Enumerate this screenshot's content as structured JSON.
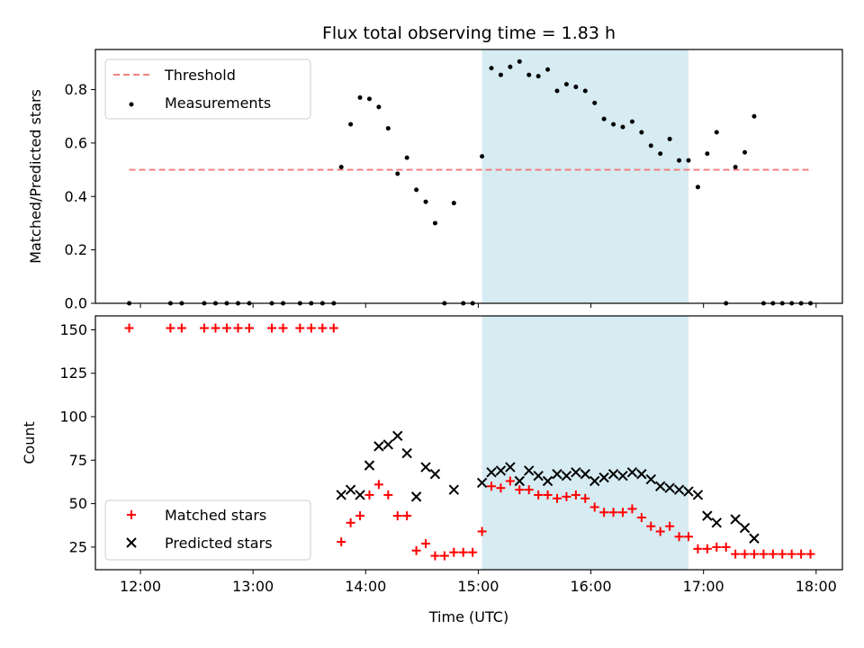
{
  "colors": {
    "threshold": "#f08080",
    "measurement": "#000000",
    "matched": "#ff0000",
    "predicted": "#000000",
    "shade": "#add8e6"
  },
  "chart_data": [
    {
      "type": "scatter",
      "title": "Flux total observing time = 1.83 h",
      "xlabel": "",
      "ylabel": "Matched/Predicted stars",
      "xlim": [
        "11:36",
        "18:14"
      ],
      "ylim": [
        0,
        0.95
      ],
      "x_ticks": [
        "12:00",
        "13:00",
        "14:00",
        "15:00",
        "16:00",
        "17:00",
        "18:00"
      ],
      "y_ticks": [
        "0.0",
        "0.2",
        "0.4",
        "0.6",
        "0.8"
      ],
      "shaded_region": [
        "15:02",
        "16:52"
      ],
      "legend": {
        "placement": "upper-left",
        "entries": [
          {
            "label": "Threshold",
            "style": "dashed-line"
          },
          {
            "label": "Measurements",
            "style": "dot"
          }
        ]
      },
      "series": [
        {
          "name": "Threshold",
          "kind": "line",
          "points": [
            [
              "11:54",
              0.5
            ],
            [
              "17:58",
              0.5
            ]
          ]
        },
        {
          "name": "Measurements",
          "kind": "scatter",
          "points": [
            [
              "11:54",
              0.0
            ],
            [
              "12:16",
              0.0
            ],
            [
              "12:22",
              0.0
            ],
            [
              "12:34",
              0.0
            ],
            [
              "12:40",
              0.0
            ],
            [
              "12:46",
              0.0
            ],
            [
              "12:52",
              0.0
            ],
            [
              "12:58",
              0.0
            ],
            [
              "13:10",
              0.0
            ],
            [
              "13:16",
              0.0
            ],
            [
              "13:25",
              0.0
            ],
            [
              "13:31",
              0.0
            ],
            [
              "13:37",
              0.0
            ],
            [
              "13:43",
              0.0
            ],
            [
              "13:47",
              0.51
            ],
            [
              "13:52",
              0.67
            ],
            [
              "13:57",
              0.77
            ],
            [
              "14:02",
              0.765
            ],
            [
              "14:07",
              0.735
            ],
            [
              "14:12",
              0.655
            ],
            [
              "14:17",
              0.485
            ],
            [
              "14:22",
              0.545
            ],
            [
              "14:27",
              0.425
            ],
            [
              "14:32",
              0.38
            ],
            [
              "14:37",
              0.3
            ],
            [
              "14:42",
              0.0
            ],
            [
              "14:47",
              0.375
            ],
            [
              "14:52",
              0.0
            ],
            [
              "14:57",
              0.0
            ],
            [
              "15:02",
              0.55
            ],
            [
              "15:07",
              0.88
            ],
            [
              "15:12",
              0.855
            ],
            [
              "15:17",
              0.885
            ],
            [
              "15:22",
              0.905
            ],
            [
              "15:27",
              0.855
            ],
            [
              "15:32",
              0.85
            ],
            [
              "15:37",
              0.875
            ],
            [
              "15:42",
              0.795
            ],
            [
              "15:47",
              0.82
            ],
            [
              "15:52",
              0.81
            ],
            [
              "15:57",
              0.795
            ],
            [
              "16:02",
              0.75
            ],
            [
              "16:07",
              0.69
            ],
            [
              "16:12",
              0.67
            ],
            [
              "16:17",
              0.66
            ],
            [
              "16:22",
              0.68
            ],
            [
              "16:27",
              0.64
            ],
            [
              "16:32",
              0.59
            ],
            [
              "16:37",
              0.56
            ],
            [
              "16:42",
              0.615
            ],
            [
              "16:47",
              0.535
            ],
            [
              "16:52",
              0.535
            ],
            [
              "16:57",
              0.435
            ],
            [
              "17:02",
              0.56
            ],
            [
              "17:07",
              0.64
            ],
            [
              "17:12",
              0.0
            ],
            [
              "17:17",
              0.51
            ],
            [
              "17:22",
              0.565
            ],
            [
              "17:27",
              0.7
            ],
            [
              "17:32",
              0.0
            ],
            [
              "17:37",
              0.0
            ],
            [
              "17:42",
              0.0
            ],
            [
              "17:47",
              0.0
            ],
            [
              "17:52",
              0.0
            ],
            [
              "17:57",
              0.0
            ]
          ]
        }
      ]
    },
    {
      "type": "scatter",
      "title": "",
      "xlabel": "Time (UTC)",
      "ylabel": "Count",
      "xlim": [
        "11:36",
        "18:14"
      ],
      "ylim": [
        12,
        158
      ],
      "x_ticks": [
        "12:00",
        "13:00",
        "14:00",
        "15:00",
        "16:00",
        "17:00",
        "18:00"
      ],
      "y_ticks": [
        "25",
        "50",
        "75",
        "100",
        "125",
        "150"
      ],
      "shaded_region": [
        "15:02",
        "16:52"
      ],
      "legend": {
        "placement": "lower-left",
        "entries": [
          {
            "label": "Matched stars",
            "style": "plus"
          },
          {
            "label": "Predicted stars",
            "style": "cross"
          }
        ]
      },
      "series": [
        {
          "name": "Matched stars",
          "kind": "scatter",
          "points": [
            [
              "11:54",
              151
            ],
            [
              "12:16",
              151
            ],
            [
              "12:22",
              151
            ],
            [
              "12:34",
              151
            ],
            [
              "12:40",
              151
            ],
            [
              "12:46",
              151
            ],
            [
              "12:52",
              151
            ],
            [
              "12:58",
              151
            ],
            [
              "13:10",
              151
            ],
            [
              "13:16",
              151
            ],
            [
              "13:25",
              151
            ],
            [
              "13:31",
              151
            ],
            [
              "13:37",
              151
            ],
            [
              "13:43",
              151
            ],
            [
              "13:47",
              28
            ],
            [
              "13:52",
              39
            ],
            [
              "13:57",
              43
            ],
            [
              "14:02",
              55
            ],
            [
              "14:07",
              61
            ],
            [
              "14:12",
              55
            ],
            [
              "14:17",
              43
            ],
            [
              "14:22",
              43
            ],
            [
              "14:27",
              23
            ],
            [
              "14:32",
              27
            ],
            [
              "14:37",
              20
            ],
            [
              "14:42",
              20
            ],
            [
              "14:47",
              22
            ],
            [
              "14:52",
              22
            ],
            [
              "14:57",
              22
            ],
            [
              "15:02",
              34
            ],
            [
              "15:07",
              60
            ],
            [
              "15:12",
              59
            ],
            [
              "15:17",
              63
            ],
            [
              "15:22",
              58
            ],
            [
              "15:27",
              58
            ],
            [
              "15:32",
              55
            ],
            [
              "15:37",
              55
            ],
            [
              "15:42",
              53
            ],
            [
              "15:47",
              54
            ],
            [
              "15:52",
              55
            ],
            [
              "15:57",
              53
            ],
            [
              "16:02",
              48
            ],
            [
              "16:07",
              45
            ],
            [
              "16:12",
              45
            ],
            [
              "16:17",
              45
            ],
            [
              "16:22",
              47
            ],
            [
              "16:27",
              42
            ],
            [
              "16:32",
              37
            ],
            [
              "16:37",
              34
            ],
            [
              "16:42",
              37
            ],
            [
              "16:47",
              31
            ],
            [
              "16:52",
              31
            ],
            [
              "16:57",
              24
            ],
            [
              "17:02",
              24
            ],
            [
              "17:07",
              25
            ],
            [
              "17:12",
              25
            ],
            [
              "17:17",
              21
            ],
            [
              "17:22",
              21
            ],
            [
              "17:27",
              21
            ],
            [
              "17:32",
              21
            ],
            [
              "17:37",
              21
            ],
            [
              "17:42",
              21
            ],
            [
              "17:47",
              21
            ],
            [
              "17:52",
              21
            ],
            [
              "17:57",
              21
            ]
          ]
        },
        {
          "name": "Predicted stars",
          "kind": "scatter",
          "points": [
            [
              "13:47",
              55
            ],
            [
              "13:52",
              58
            ],
            [
              "13:57",
              55
            ],
            [
              "14:02",
              72
            ],
            [
              "14:07",
              83
            ],
            [
              "14:12",
              84
            ],
            [
              "14:17",
              89
            ],
            [
              "14:22",
              79
            ],
            [
              "14:27",
              54
            ],
            [
              "14:32",
              71
            ],
            [
              "14:37",
              67
            ],
            [
              "14:47",
              58
            ],
            [
              "15:02",
              62
            ],
            [
              "15:07",
              68
            ],
            [
              "15:12",
              69
            ],
            [
              "15:17",
              71
            ],
            [
              "15:22",
              63
            ],
            [
              "15:27",
              69
            ],
            [
              "15:32",
              66
            ],
            [
              "15:37",
              63
            ],
            [
              "15:42",
              67
            ],
            [
              "15:47",
              66
            ],
            [
              "15:52",
              68
            ],
            [
              "15:57",
              67
            ],
            [
              "16:02",
              63
            ],
            [
              "16:07",
              65
            ],
            [
              "16:12",
              67
            ],
            [
              "16:17",
              66
            ],
            [
              "16:22",
              68
            ],
            [
              "16:27",
              67
            ],
            [
              "16:32",
              64
            ],
            [
              "16:37",
              60
            ],
            [
              "16:42",
              59
            ],
            [
              "16:47",
              58
            ],
            [
              "16:52",
              57
            ],
            [
              "16:57",
              55
            ],
            [
              "17:02",
              43
            ],
            [
              "17:07",
              39
            ],
            [
              "17:17",
              41
            ],
            [
              "17:22",
              36
            ],
            [
              "17:27",
              30
            ]
          ]
        }
      ]
    }
  ]
}
